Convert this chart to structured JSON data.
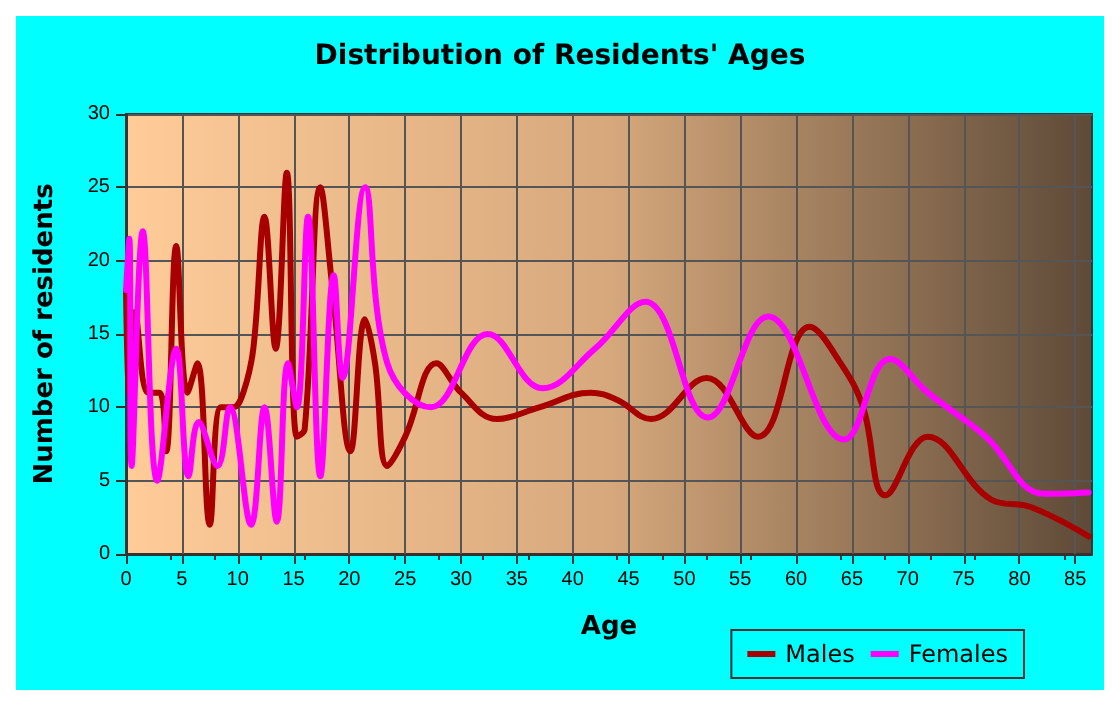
{
  "chart_data": {
    "type": "line",
    "title": "Distribution of Residents' Ages",
    "xlabel": "Age",
    "ylabel": "Number of residents",
    "xlim": [
      0,
      86.5
    ],
    "xticks": [
      0,
      5,
      10,
      15,
      20,
      25,
      30,
      35,
      40,
      45,
      50,
      55,
      60,
      65,
      70,
      75,
      80,
      85
    ],
    "ylim": [
      0,
      30
    ],
    "yticks": [
      0,
      5,
      10,
      15,
      20,
      25,
      30
    ],
    "grid": true,
    "legend": "bottom right",
    "marker": "none",
    "line_style": "solid",
    "series": [
      {
        "name": "Males",
        "color": "#a80000",
        "x": [
          0,
          0.3,
          0.8,
          2,
          3,
          3.6,
          4.5,
          5.5,
          6.4,
          7.5,
          8.5,
          9.6,
          10.5,
          11.4,
          12.4,
          13.4,
          14.4,
          15.3,
          16,
          17.4,
          18.5,
          20.1,
          21.4,
          22.3,
          23.4,
          25,
          27.8,
          30,
          33.2,
          37,
          41.6,
          44,
          47,
          52,
          56.6,
          61.2,
          64,
          66,
          68,
          71.8,
          77.5,
          81,
          86.2
        ],
        "values": [
          18,
          11,
          16.5,
          11,
          11,
          7,
          21,
          11,
          13,
          2,
          10,
          10,
          11,
          14,
          23,
          14,
          26,
          8,
          8.5,
          25,
          18,
          7,
          16,
          13,
          6,
          8,
          13,
          11,
          9.2,
          10,
          11,
          10.5,
          9.2,
          12,
          8,
          15.5,
          13,
          10,
          4,
          8,
          3.7,
          3.2,
          1.2
        ]
      },
      {
        "name": "Females",
        "color": "#ff00ff",
        "x": [
          0,
          0.3,
          0.5,
          1.5,
          2.8,
          4.5,
          5.6,
          6.5,
          8.2,
          9.3,
          11.2,
          12.4,
          13.5,
          14.5,
          15.3,
          16.3,
          17.4,
          18.6,
          19.4,
          21.4,
          23.4,
          27.3,
          32.4,
          37.3,
          42,
          46.5,
          52.1,
          57.5,
          64.3,
          68.4,
          71.8,
          77,
          82.2,
          86.2
        ],
        "values": [
          18,
          21.5,
          6,
          22,
          5,
          14,
          5.3,
          9,
          6,
          10,
          2,
          10,
          2.2,
          13,
          10,
          23,
          5.3,
          19,
          12,
          25,
          13,
          10,
          15,
          11.3,
          14,
          17.2,
          9.3,
          16.2,
          7.8,
          13.3,
          11,
          8,
          4.1,
          4.2
        ]
      }
    ]
  }
}
